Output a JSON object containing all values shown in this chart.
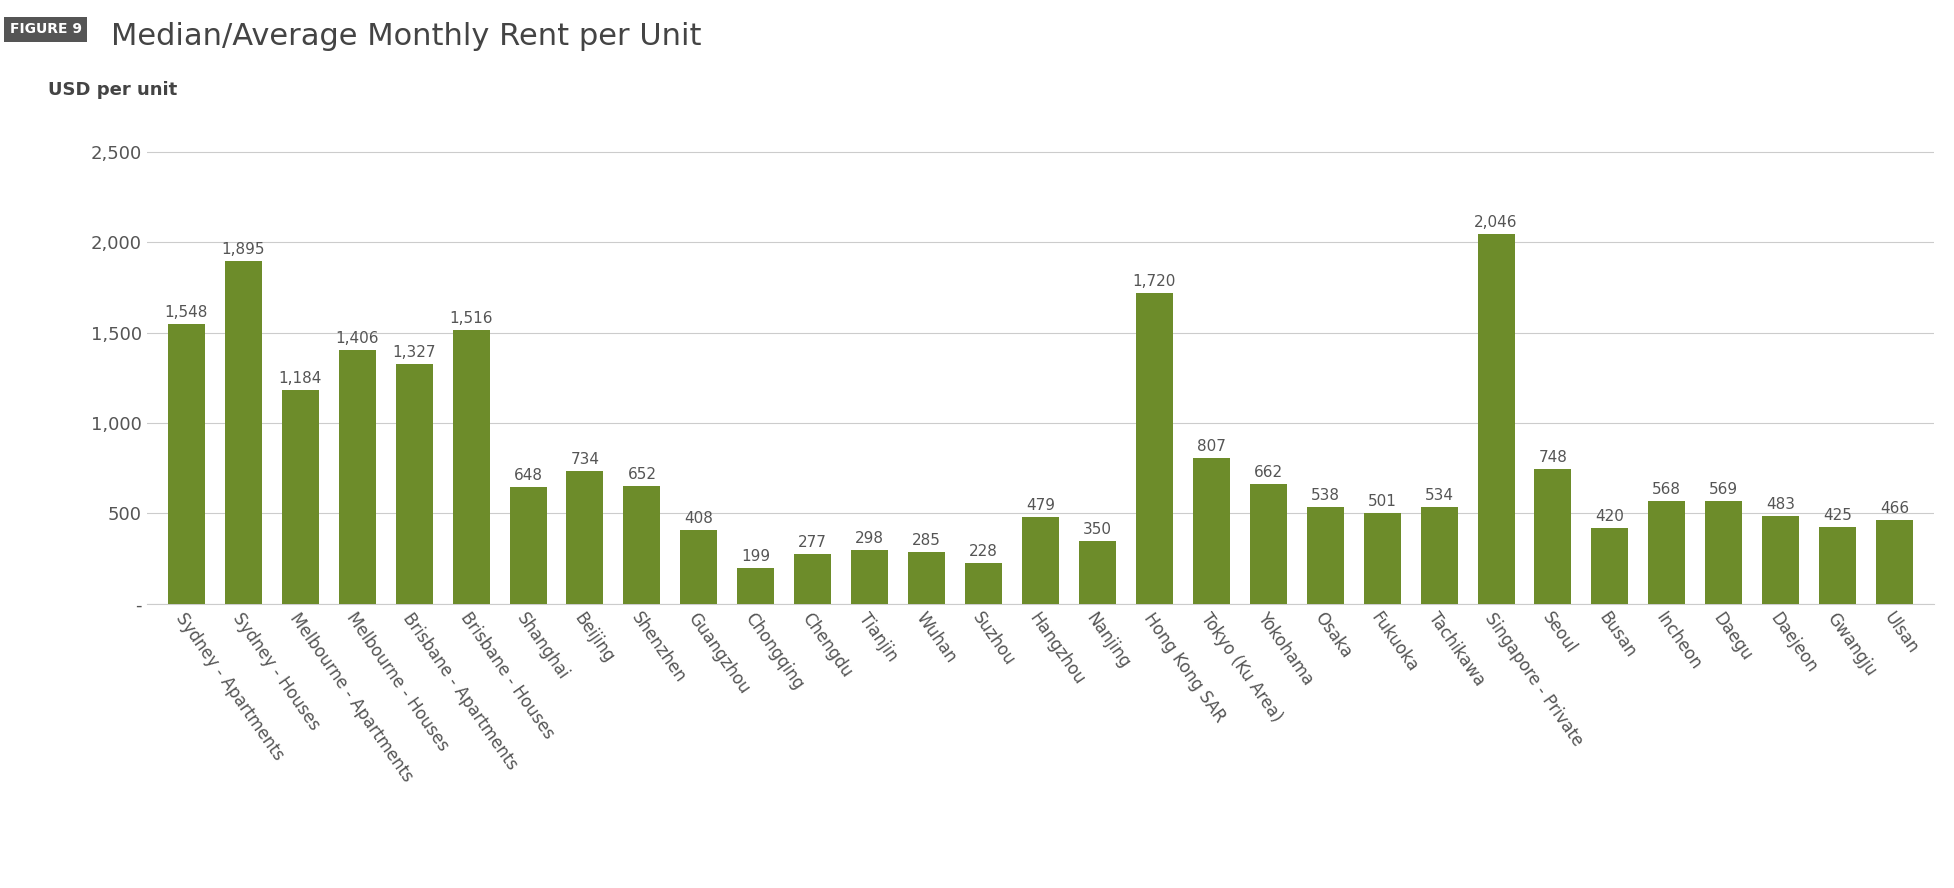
{
  "title": "Median/Average Monthly Rent per Unit",
  "figure_label": "FIGURE 9",
  "ylabel": "USD per unit",
  "bar_color": "#6d8c2a",
  "background_color": "#ffffff",
  "categories": [
    "Sydney - Apartments",
    "Sydney - Houses",
    "Melbourne - Apartments",
    "Melbourne - Houses",
    "Brisbane - Apartments",
    "Brisbane - Houses",
    "Shanghai",
    "Beijing",
    "Shenzhen",
    "Guangzhou",
    "Chongqing",
    "Chengdu",
    "Tianjin",
    "Wuhan",
    "Suzhou",
    "Hangzhou",
    "Nanjing",
    "Hong Kong SAR",
    "Tokyo (Ku Area)",
    "Yokohama",
    "Osaka",
    "Fukuoka",
    "Tachikawa",
    "Singapore - Private",
    "Seoul",
    "Busan",
    "Incheon",
    "Daegu",
    "Daejeon",
    "Gwangju",
    "Ulsan"
  ],
  "values": [
    1548,
    1895,
    1184,
    1406,
    1327,
    1516,
    648,
    734,
    652,
    408,
    199,
    277,
    298,
    285,
    228,
    479,
    350,
    1720,
    807,
    662,
    538,
    501,
    534,
    2046,
    748,
    420,
    568,
    569,
    483,
    425,
    466
  ],
  "ylim": [
    0,
    2700
  ],
  "yticks": [
    0,
    500,
    1000,
    1500,
    2000,
    2500
  ],
  "ytick_labels": [
    "-",
    "500",
    "1,000",
    "1,500",
    "2,000",
    "2,500"
  ],
  "title_fontsize": 22,
  "tick_fontsize": 13,
  "value_fontsize": 11,
  "ylabel_fontsize": 13,
  "grid_color": "#cccccc",
  "text_color": "#555555",
  "fig_label_bg": "#555555",
  "fig_label_fg": "#ffffff"
}
